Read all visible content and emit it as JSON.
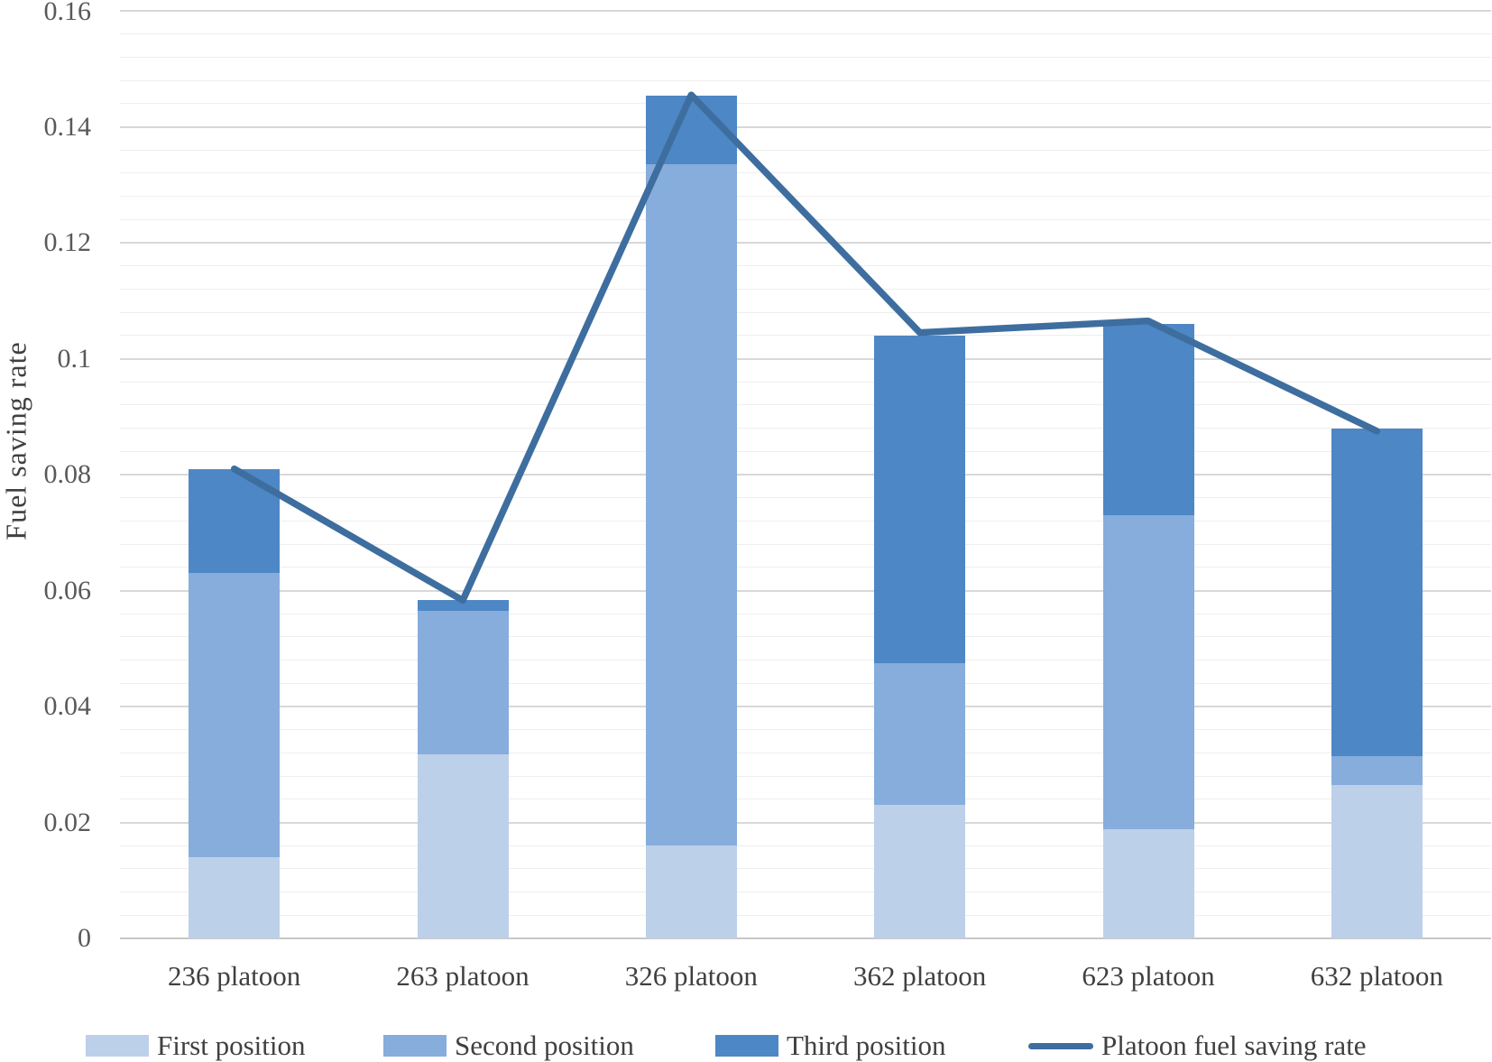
{
  "chart_data": {
    "type": "bar",
    "subtype": "stacked-column-with-line-overlay",
    "title": "",
    "xlabel": "",
    "ylabel": "Fuel saving rate",
    "categories": [
      "236 platoon",
      "263 platoon",
      "326 platoon",
      "362 platoon",
      "623 platoon",
      "632 platoon"
    ],
    "series": [
      {
        "name": "First position",
        "color": "#bdd0ea",
        "values": [
          0.014,
          0.0318,
          0.016,
          0.023,
          0.0188,
          0.0265
        ]
      },
      {
        "name": "Second position",
        "color": "#86addc",
        "values": [
          0.049,
          0.0247,
          0.1175,
          0.0245,
          0.0542,
          0.005
        ]
      },
      {
        "name": "Third position",
        "color": "#4e87c5",
        "values": [
          0.018,
          0.0018,
          0.0118,
          0.0565,
          0.033,
          0.0565
        ]
      }
    ],
    "line_series": {
      "name": "Platoon fuel saving rate",
      "color": "#3e6e9f",
      "values": [
        0.081,
        0.0583,
        0.1455,
        0.1045,
        0.1065,
        0.0875
      ]
    },
    "stack_totals": [
      0.081,
      0.0583,
      0.1453,
      0.104,
      0.106,
      0.088
    ],
    "ylim": [
      0,
      0.16
    ],
    "y_major_unit": 0.02,
    "y_minor_unit": 0.004,
    "y_tick_labels": [
      "0.16",
      "0.14",
      "0.12",
      "0.1",
      "0.08",
      "0.06",
      "0.04",
      "0.02",
      "0"
    ],
    "grid": true,
    "legend_position": "bottom"
  },
  "colors": {
    "grid_minor": "#eeeeee",
    "grid_major": "#d8d8d8",
    "axis_zero_line": "#c8c8c8",
    "tick_text": "#595959",
    "label_text": "#404040"
  }
}
